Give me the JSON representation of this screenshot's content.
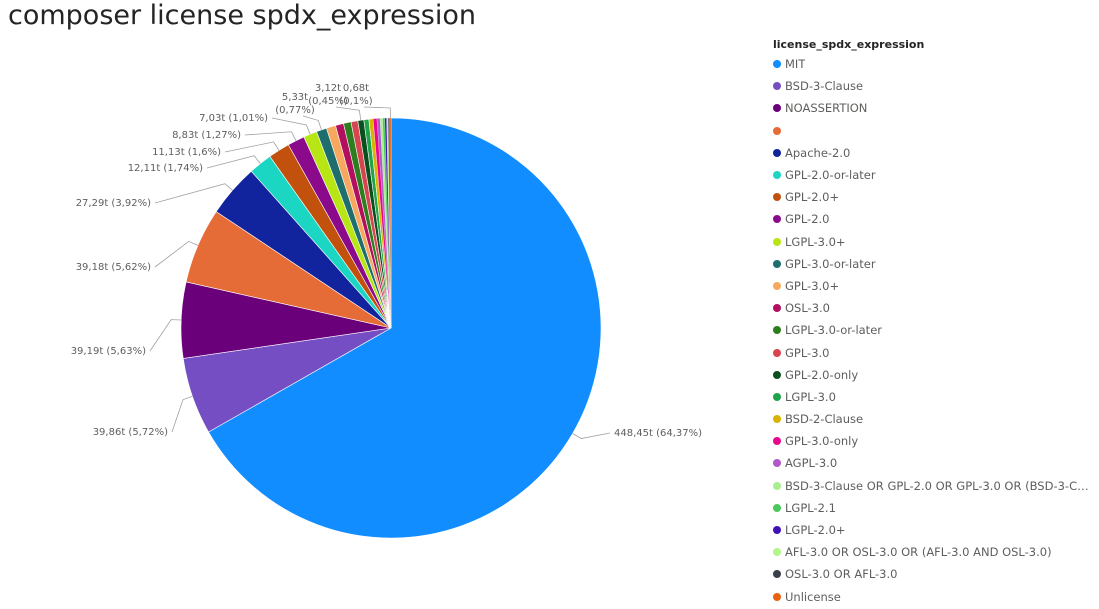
{
  "page": {
    "title": "composer license spdx_expression"
  },
  "chart_data": {
    "type": "pie",
    "title": "composer license spdx_expression",
    "legend_title": "license_spdx_expression",
    "legend_placement": "right",
    "slices": [
      {
        "name": "MIT",
        "value": 448.45,
        "pct": 64.37,
        "color": "#118DFF",
        "label": "448,45t (64,37%)"
      },
      {
        "name": "BSD-3-Clause",
        "value": 39.86,
        "pct": 5.72,
        "color": "#744EC2",
        "label": "39,86t (5,72%)"
      },
      {
        "name": "NOASSERTION",
        "value": 39.19,
        "pct": 5.63,
        "color": "#6B007B",
        "label": "39,19t (5,63%)"
      },
      {
        "name": "",
        "value": 39.18,
        "pct": 5.62,
        "color": "#E66C37",
        "label": "39,18t (5,62%)"
      },
      {
        "name": "Apache-2.0",
        "value": 27.29,
        "pct": 3.92,
        "color": "#12239E",
        "label": "27,29t (3,92%)"
      },
      {
        "name": "GPL-2.0-or-later",
        "value": 12.11,
        "pct": 1.74,
        "color": "#1AD6C3",
        "label": "12,11t (1,74%)"
      },
      {
        "name": "GPL-2.0+",
        "value": 11.13,
        "pct": 1.6,
        "color": "#C2510E",
        "label": "11,13t (1,6%)"
      },
      {
        "name": "GPL-2.0",
        "value": 8.83,
        "pct": 1.27,
        "color": "#8B0A8C",
        "label": "8,83t (1,27%)"
      },
      {
        "name": "LGPL-3.0+",
        "value": 7.03,
        "pct": 1.01,
        "color": "#B8E615",
        "label": "7,03t (1,01%)"
      },
      {
        "name": "GPL-3.0-or-later",
        "value": 5.33,
        "pct": 0.77,
        "color": "#1F6E6E",
        "label": "5,33t (0,77%)"
      },
      {
        "name": "GPL-3.0+",
        "value": 4.8,
        "pct": 0.69,
        "color": "#F7A85E",
        "label": ""
      },
      {
        "name": "OSL-3.0",
        "value": 4.2,
        "pct": 0.6,
        "color": "#B30F5F",
        "label": ""
      },
      {
        "name": "LGPL-3.0-or-later",
        "value": 3.9,
        "pct": 0.56,
        "color": "#2C7E1E",
        "label": ""
      },
      {
        "name": "GPL-3.0",
        "value": 3.5,
        "pct": 0.5,
        "color": "#D64550",
        "label": ""
      },
      {
        "name": "GPL-2.0-only",
        "value": 3.12,
        "pct": 0.45,
        "color": "#0B4F1F",
        "label": "3,12t (0,45%)"
      },
      {
        "name": "LGPL-3.0",
        "value": 2.6,
        "pct": 0.37,
        "color": "#20A44B",
        "label": ""
      },
      {
        "name": "BSD-2-Clause",
        "value": 2.2,
        "pct": 0.32,
        "color": "#D9B300",
        "label": ""
      },
      {
        "name": "GPL-3.0-only",
        "value": 1.9,
        "pct": 0.27,
        "color": "#E8078C",
        "label": ""
      },
      {
        "name": "AGPL-3.0",
        "value": 1.6,
        "pct": 0.23,
        "color": "#B05BC9",
        "label": ""
      },
      {
        "name": "BSD-3-Clause OR GPL-2.0 OR GPL-3.0 OR (BSD-3-Clause ...",
        "value": 1.3,
        "pct": 0.19,
        "color": "#A8EE8E",
        "label": ""
      },
      {
        "name": "LGPL-2.1",
        "value": 1.1,
        "pct": 0.16,
        "color": "#4CC75B",
        "label": ""
      },
      {
        "name": "LGPL-2.0+",
        "value": 0.95,
        "pct": 0.14,
        "color": "#3F12B8",
        "label": ""
      },
      {
        "name": "AFL-3.0 OR OSL-3.0 OR (AFL-3.0 AND OSL-3.0)",
        "value": 0.8,
        "pct": 0.11,
        "color": "#B5F58A",
        "label": ""
      },
      {
        "name": "OSL-3.0 OR AFL-3.0",
        "value": 0.75,
        "pct": 0.11,
        "color": "#3A3F4B",
        "label": ""
      },
      {
        "name": "Unlicense",
        "value": 0.68,
        "pct": 0.1,
        "color": "#E8620F",
        "label": "0,68t (0,1%)"
      }
    ]
  }
}
